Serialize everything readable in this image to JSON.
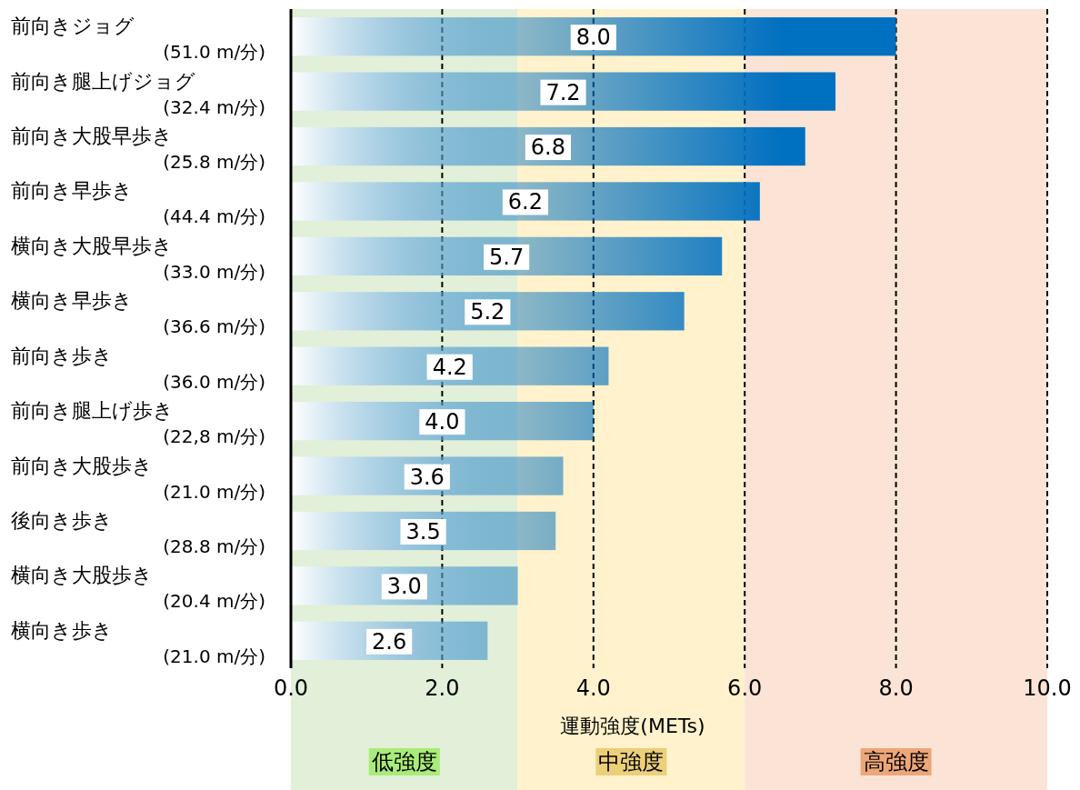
{
  "chart_data": {
    "type": "bar",
    "orientation": "horizontal",
    "categories": [
      "前向きジョグ\n(51.0 m/分)",
      "前向き腿上げジョグ\n(32.4 m/分)",
      "前向き大股早歩き\n(25.8 m/分)",
      "前向き早歩き\n(44.4 m/分)",
      "横向き大股早歩き\n(33.0 m/分)",
      "横向き早歩き\n(36.6 m/分)",
      "前向き歩き\n(36.0 m/分)",
      "前向き腿上げ歩き\n(22,8 m/分)",
      "前向き大股歩き\n(21.0 m/分)",
      "後向き歩き\n(28.8 m/分)",
      "横向き大股歩き\n(20.4 m/分)",
      "横向き歩き\n(21.0 m/分)"
    ],
    "values": [
      8.0,
      7.2,
      6.8,
      6.2,
      5.7,
      5.2,
      4.2,
      4.0,
      3.6,
      3.5,
      3.0,
      2.6
    ],
    "value_labels": [
      "8.0",
      "7.2",
      "6.8",
      "6.2",
      "5.7",
      "5.2",
      "4.2",
      "4.0",
      "3.6",
      "3.5",
      "3.0",
      "2.6"
    ],
    "color": "#0070c0",
    "xlabel": "運動強度(METs)",
    "xlim": [
      0,
      10
    ],
    "xticks": [
      {
        "value": 0,
        "label": "0.0"
      },
      {
        "value": 2,
        "label": "2.0"
      },
      {
        "value": 4,
        "label": "4.0"
      },
      {
        "value": 6,
        "label": "6.0"
      },
      {
        "value": 8,
        "label": "8.0"
      },
      {
        "value": 10,
        "label": "10.0"
      }
    ],
    "grid": "x",
    "bands": [
      {
        "axis": "x",
        "from": 0,
        "to": 3.0,
        "label": "低強度",
        "color": "#e2efd9"
      },
      {
        "axis": "x",
        "from": 3.0,
        "to": 6.0,
        "label": "中強度",
        "color": "#fff2cc"
      },
      {
        "axis": "x",
        "from": 6.0,
        "to": 10,
        "label": "高強度",
        "color": "#fbe4d5"
      }
    ]
  }
}
